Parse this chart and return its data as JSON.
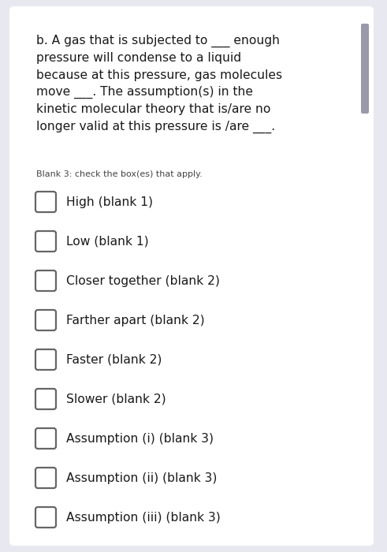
{
  "background_color": "#e8e8f0",
  "card_color": "#ffffff",
  "paragraph_text": "b. A gas that is subjected to ___ enough\npressure will condense to a liquid\nbecause at this pressure, gas molecules\nmove ___. The assumption(s) in the\nkinetic molecular theory that is/are no\nlonger valid at this pressure is /are ___.",
  "subtext": "Blank 3: check the box(es) that apply.",
  "options": [
    "High (blank 1)",
    "Low (blank 1)",
    "Closer together (blank 2)",
    "Farther apart (blank 2)",
    "Faster (blank 2)",
    "Slower (blank 2)",
    "Assumption (i) (blank 3)",
    "Assumption (ii) (blank 3)",
    "Assumption (iii) (blank 3)"
  ],
  "para_fontsize": 11.2,
  "subtext_fontsize": 8.0,
  "option_fontsize": 11.2,
  "checkbox_linewidth": 1.6,
  "checkbox_color": "#666666",
  "text_color": "#1a1a1a",
  "subtext_color": "#444444",
  "scrollbar_color": "#9999aa"
}
